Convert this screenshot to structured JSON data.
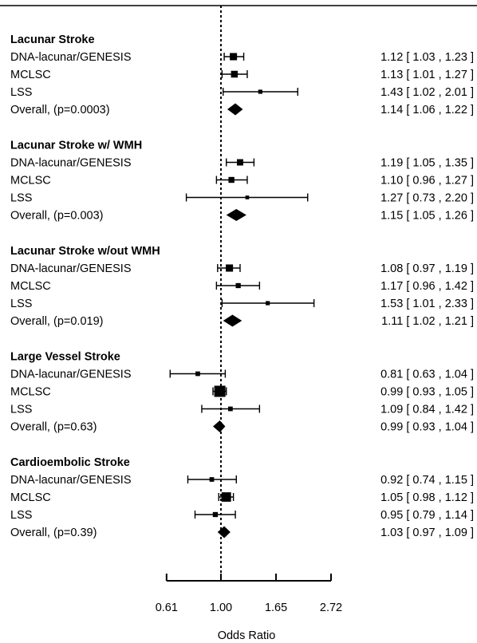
{
  "chart_data": {
    "type": "forest",
    "xlabel": "Odds Ratio",
    "x_scale": "log",
    "x_ticks": [
      0.61,
      1.0,
      1.65,
      2.72
    ],
    "x_tick_labels": [
      "0.61",
      "1.00",
      "1.65",
      "2.72"
    ],
    "reference_line": 1.0,
    "groups": [
      {
        "title": "Lacunar Stroke",
        "rows": [
          {
            "label": "DNA-lacunar/GENESIS",
            "or": 1.12,
            "lo": 1.03,
            "hi": 1.23,
            "ci_text": "1.12 [ 1.03 , 1.23 ]",
            "weight": 0.55
          },
          {
            "label": "MCLSC",
            "or": 1.13,
            "lo": 1.01,
            "hi": 1.27,
            "ci_text": "1.13 [ 1.01 , 1.27 ]",
            "weight": 0.5
          },
          {
            "label": "LSS",
            "or": 1.43,
            "lo": 1.02,
            "hi": 2.01,
            "ci_text": "1.43 [ 1.02 , 2.01 ]",
            "weight": 0.2
          },
          {
            "label": "Overall, (p=0.0003)",
            "or": 1.14,
            "lo": 1.06,
            "hi": 1.22,
            "ci_text": "1.14 [ 1.06 , 1.22 ]",
            "overall": true
          }
        ]
      },
      {
        "title": "Lacunar Stroke w/ WMH",
        "rows": [
          {
            "label": "DNA-lacunar/GENESIS",
            "or": 1.19,
            "lo": 1.05,
            "hi": 1.35,
            "ci_text": "1.19 [ 1.05 , 1.35 ]",
            "weight": 0.45
          },
          {
            "label": "MCLSC",
            "or": 1.1,
            "lo": 0.96,
            "hi": 1.27,
            "ci_text": "1.10 [ 0.96 , 1.27 ]",
            "weight": 0.4
          },
          {
            "label": "LSS",
            "or": 1.27,
            "lo": 0.73,
            "hi": 2.2,
            "ci_text": "1.27 [ 0.73 , 2.20 ]",
            "weight": 0.15
          },
          {
            "label": "Overall, (p=0.003)",
            "or": 1.15,
            "lo": 1.05,
            "hi": 1.26,
            "ci_text": "1.15 [ 1.05 , 1.26 ]",
            "overall": true
          }
        ]
      },
      {
        "title": "Lacunar Stroke w/out WMH",
        "rows": [
          {
            "label": "DNA-lacunar/GENESIS",
            "or": 1.08,
            "lo": 0.97,
            "hi": 1.19,
            "ci_text": "1.08 [ 0.97 , 1.19 ]",
            "weight": 0.55
          },
          {
            "label": "MCLSC",
            "or": 1.17,
            "lo": 0.96,
            "hi": 1.42,
            "ci_text": "1.17 [ 0.96 , 1.42 ]",
            "weight": 0.3
          },
          {
            "label": "LSS",
            "or": 1.53,
            "lo": 1.01,
            "hi": 2.33,
            "ci_text": "1.53 [ 1.01 , 2.33 ]",
            "weight": 0.2
          },
          {
            "label": "Overall, (p=0.019)",
            "or": 1.11,
            "lo": 1.02,
            "hi": 1.21,
            "ci_text": "1.11 [ 1.02 , 1.21 ]",
            "overall": true
          }
        ]
      },
      {
        "title": "Large Vessel Stroke",
        "rows": [
          {
            "label": "DNA-lacunar/GENESIS",
            "or": 0.81,
            "lo": 0.63,
            "hi": 1.04,
            "ci_text": "0.81 [ 0.63 , 1.04 ]",
            "weight": 0.25
          },
          {
            "label": "MCLSC",
            "or": 0.99,
            "lo": 0.93,
            "hi": 1.05,
            "ci_text": "0.99 [ 0.93 , 1.05 ]",
            "weight": 1.0
          },
          {
            "label": "LSS",
            "or": 1.09,
            "lo": 0.84,
            "hi": 1.42,
            "ci_text": "1.09 [ 0.84 , 1.42 ]",
            "weight": 0.25
          },
          {
            "label": "Overall, (p=0.63)",
            "or": 0.99,
            "lo": 0.93,
            "hi": 1.04,
            "ci_text": "0.99 [ 0.93 , 1.04 ]",
            "overall": true
          }
        ]
      },
      {
        "title": "Cardioembolic Stroke",
        "rows": [
          {
            "label": "DNA-lacunar/GENESIS",
            "or": 0.92,
            "lo": 0.74,
            "hi": 1.15,
            "ci_text": "0.92 [ 0.74 , 1.15 ]",
            "weight": 0.25
          },
          {
            "label": "MCLSC",
            "or": 1.05,
            "lo": 0.98,
            "hi": 1.12,
            "ci_text": "1.05 [ 0.98 , 1.12 ]",
            "weight": 0.8
          },
          {
            "label": "LSS",
            "or": 0.95,
            "lo": 0.79,
            "hi": 1.14,
            "ci_text": "0.95 [ 0.79 , 1.14 ]",
            "weight": 0.3
          },
          {
            "label": "Overall, (p=0.39)",
            "or": 1.03,
            "lo": 0.97,
            "hi": 1.09,
            "ci_text": "1.03 [ 0.97 , 1.09 ]",
            "overall": true
          }
        ]
      }
    ]
  }
}
